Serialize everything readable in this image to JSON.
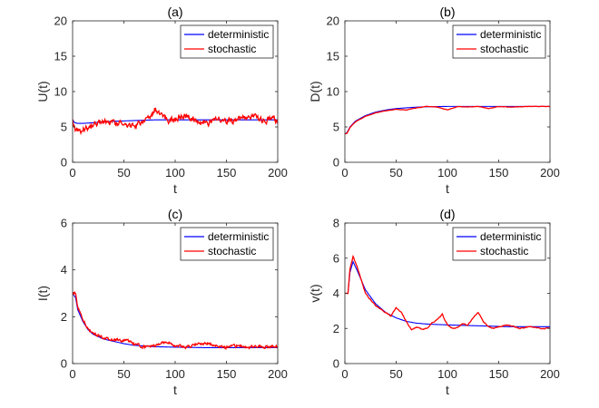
{
  "colors": {
    "deterministic": "#0000ff",
    "stochastic": "#ff0000",
    "axis": "#262626"
  },
  "chart_data": [
    {
      "id": "a",
      "type": "line",
      "title": "(a)",
      "xlabel": "t",
      "ylabel": "U(t)",
      "xlim": [
        0,
        200
      ],
      "ylim": [
        0,
        20
      ],
      "xticks": [
        0,
        50,
        100,
        150,
        200
      ],
      "yticks": [
        0,
        5,
        10,
        15,
        20
      ],
      "legend": [
        "deterministic",
        "stochastic"
      ],
      "legend_position": "top-right",
      "series": [
        {
          "name": "deterministic",
          "x": [
            0,
            2,
            5,
            10,
            20,
            40,
            60,
            80,
            100,
            130,
            160,
            200
          ],
          "y": [
            6.0,
            5.6,
            5.5,
            5.5,
            5.6,
            5.8,
            5.9,
            6.0,
            6.0,
            6.0,
            6.0,
            6.0
          ]
        },
        {
          "name": "stochastic",
          "x": [
            0,
            3,
            8,
            15,
            25,
            35,
            45,
            55,
            65,
            75,
            80,
            85,
            95,
            105,
            115,
            125,
            135,
            145,
            155,
            165,
            175,
            185,
            195,
            200
          ],
          "y": [
            6.0,
            4.5,
            4.6,
            5.0,
            5.5,
            5.8,
            5.6,
            5.2,
            5.4,
            6.0,
            7.5,
            6.8,
            5.8,
            6.6,
            6.2,
            5.6,
            5.7,
            6.0,
            5.8,
            6.2,
            6.5,
            5.9,
            6.2,
            5.6
          ],
          "noise": 0.8
        }
      ]
    },
    {
      "id": "b",
      "type": "line",
      "title": "(b)",
      "xlabel": "t",
      "ylabel": "D(t)",
      "xlim": [
        0,
        200
      ],
      "ylim": [
        0,
        20
      ],
      "xticks": [
        0,
        50,
        100,
        150,
        200
      ],
      "yticks": [
        0,
        5,
        10,
        15,
        20
      ],
      "legend": [
        "deterministic",
        "stochastic"
      ],
      "legend_position": "top-right",
      "series": [
        {
          "name": "deterministic",
          "x": [
            0,
            2,
            5,
            10,
            20,
            30,
            40,
            50,
            60,
            70,
            80,
            100,
            130,
            160,
            200
          ],
          "y": [
            4.0,
            4.2,
            5.0,
            5.8,
            6.6,
            7.1,
            7.4,
            7.6,
            7.7,
            7.8,
            7.85,
            7.9,
            7.9,
            7.9,
            7.9
          ]
        },
        {
          "name": "stochastic",
          "x": [
            0,
            2,
            5,
            10,
            20,
            30,
            40,
            50,
            60,
            70,
            80,
            90,
            100,
            110,
            120,
            130,
            140,
            150,
            160,
            180,
            200
          ],
          "y": [
            4.0,
            4.1,
            4.9,
            5.7,
            6.5,
            7.0,
            7.3,
            7.5,
            7.4,
            7.7,
            7.9,
            7.8,
            7.4,
            7.9,
            7.8,
            7.9,
            7.6,
            7.9,
            7.8,
            7.9,
            7.9
          ],
          "noise": 0.05
        }
      ]
    },
    {
      "id": "c",
      "type": "line",
      "title": "(c)",
      "xlabel": "t",
      "ylabel": "I(t)",
      "xlim": [
        0,
        200
      ],
      "ylim": [
        0,
        6
      ],
      "xticks": [
        0,
        50,
        100,
        150,
        200
      ],
      "yticks": [
        0,
        2,
        4,
        6
      ],
      "legend": [
        "deterministic",
        "stochastic"
      ],
      "legend_position": "top-right",
      "series": [
        {
          "name": "deterministic",
          "x": [
            0,
            3,
            5,
            10,
            15,
            20,
            30,
            40,
            50,
            60,
            80,
            100,
            130,
            160,
            200
          ],
          "y": [
            3.0,
            2.8,
            2.3,
            1.8,
            1.45,
            1.25,
            1.05,
            0.95,
            0.85,
            0.78,
            0.72,
            0.7,
            0.68,
            0.68,
            0.68
          ]
        },
        {
          "name": "stochastic",
          "x": [
            0,
            3,
            5,
            10,
            15,
            20,
            30,
            40,
            50,
            60,
            70,
            80,
            90,
            100,
            110,
            120,
            130,
            140,
            150,
            160,
            170,
            180,
            190,
            200
          ],
          "y": [
            3.0,
            3.0,
            2.4,
            1.9,
            1.5,
            1.3,
            1.1,
            1.0,
            1.0,
            0.85,
            0.7,
            0.75,
            0.9,
            0.75,
            0.7,
            0.8,
            0.9,
            0.75,
            0.7,
            0.75,
            0.7,
            0.75,
            0.7,
            0.72
          ],
          "noise": 0.12
        }
      ]
    },
    {
      "id": "d",
      "type": "line",
      "title": "(d)",
      "xlabel": "t",
      "ylabel": "v(t)",
      "xlim": [
        0,
        200
      ],
      "ylim": [
        0,
        8
      ],
      "xticks": [
        0,
        50,
        100,
        150,
        200
      ],
      "yticks": [
        0,
        2,
        4,
        6,
        8
      ],
      "legend": [
        "deterministic",
        "stochastic"
      ],
      "legend_position": "top-right",
      "series": [
        {
          "name": "deterministic",
          "x": [
            0,
            3,
            5,
            8,
            12,
            20,
            30,
            40,
            50,
            60,
            70,
            80,
            100,
            130,
            160,
            200
          ],
          "y": [
            4.0,
            4.0,
            5.2,
            5.8,
            5.3,
            4.2,
            3.4,
            2.9,
            2.6,
            2.4,
            2.3,
            2.25,
            2.2,
            2.15,
            2.1,
            2.1
          ]
        },
        {
          "name": "stochastic",
          "x": [
            0,
            3,
            5,
            8,
            12,
            20,
            30,
            40,
            45,
            50,
            55,
            60,
            65,
            70,
            75,
            80,
            85,
            90,
            95,
            100,
            105,
            110,
            115,
            120,
            125,
            130,
            135,
            140,
            145,
            150,
            160,
            170,
            180,
            190,
            200
          ],
          "y": [
            4.0,
            4.0,
            5.4,
            6.1,
            5.5,
            4.0,
            3.3,
            2.9,
            2.7,
            3.2,
            2.9,
            2.4,
            1.9,
            2.1,
            1.95,
            2.0,
            2.3,
            2.5,
            2.8,
            2.2,
            2.0,
            2.05,
            2.3,
            2.2,
            2.6,
            2.9,
            2.4,
            2.1,
            2.0,
            2.1,
            2.2,
            2.0,
            2.1,
            2.0,
            2.0
          ],
          "noise": 0.05
        }
      ]
    }
  ]
}
